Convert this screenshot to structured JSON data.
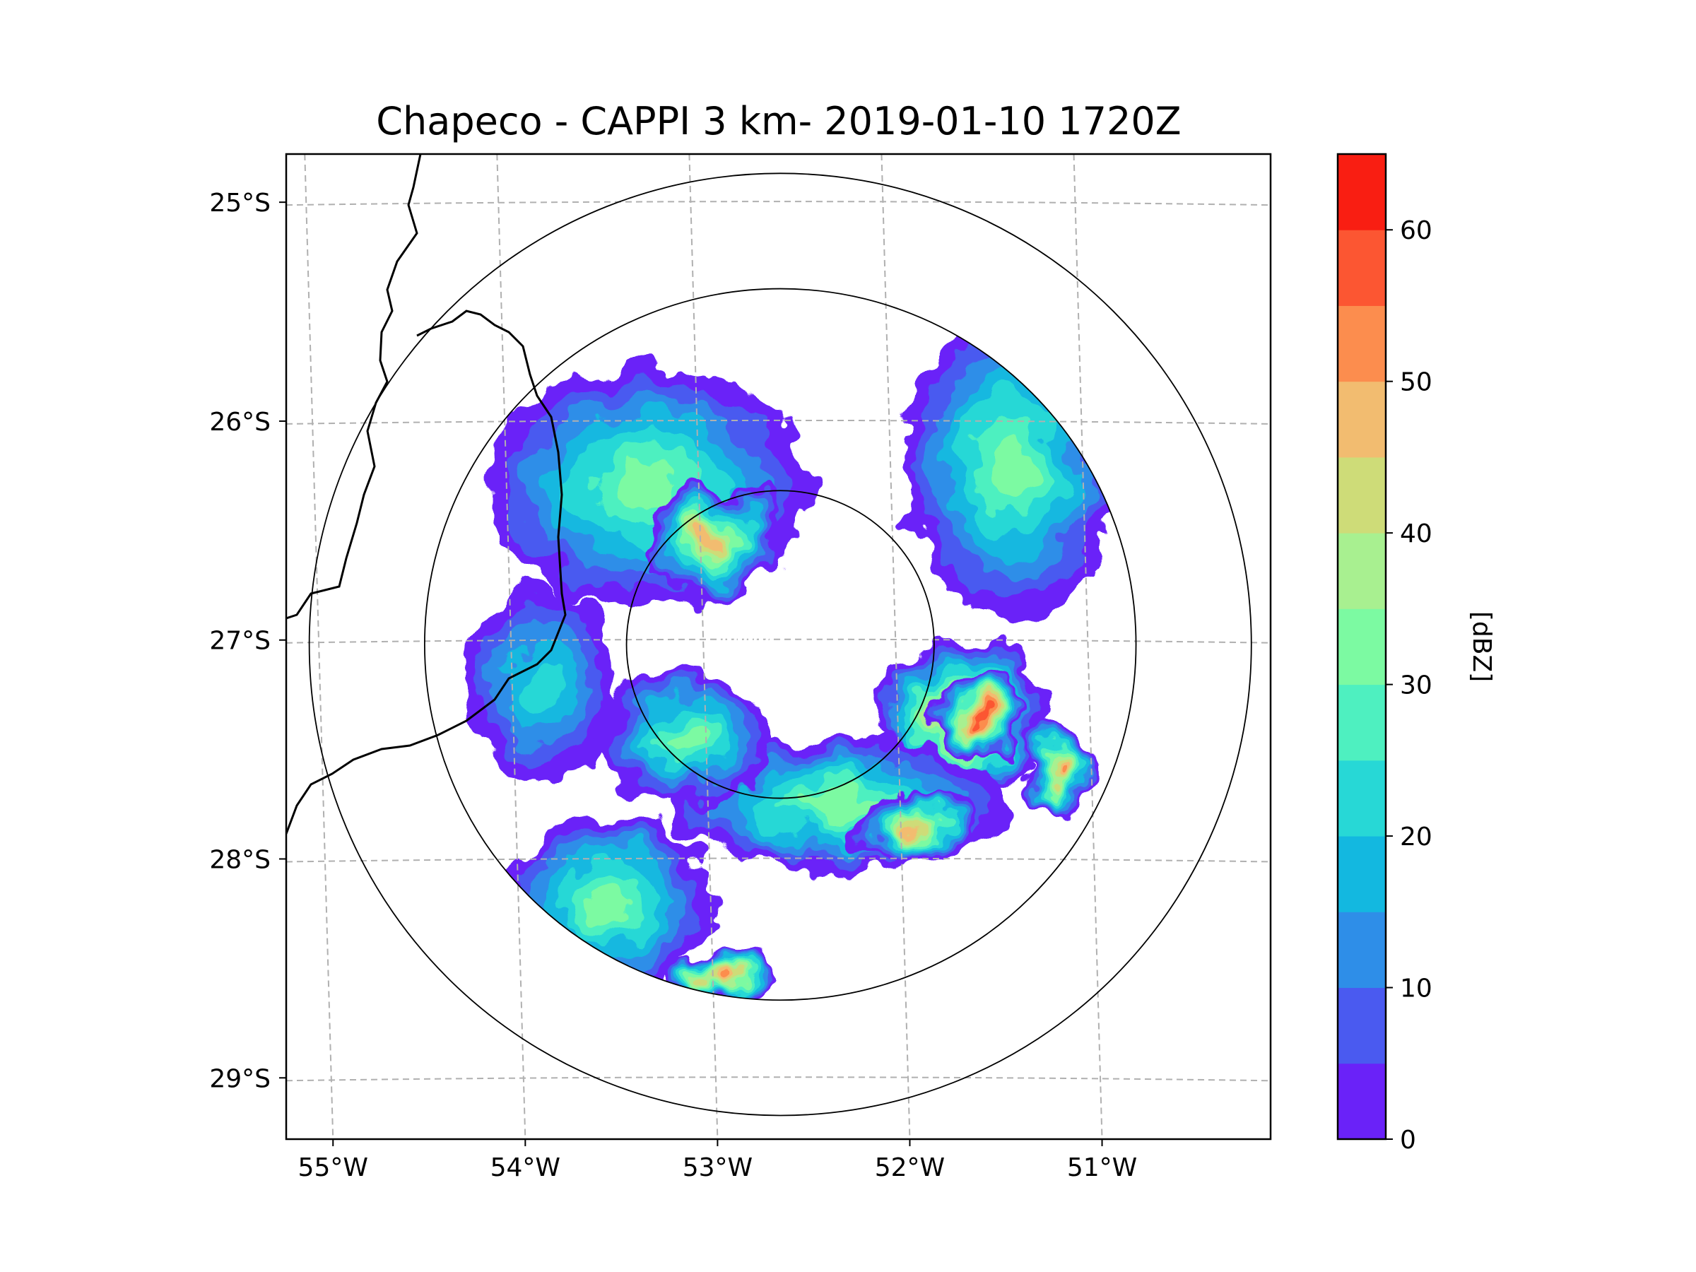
{
  "chart_data": {
    "type": "heatmap",
    "title": "Chapeco - CAPPI 3 km- 2019-01-10 1720Z",
    "lon_ticks": [
      {
        "value": -55,
        "label": "55°W"
      },
      {
        "value": -54,
        "label": "54°W"
      },
      {
        "value": -53,
        "label": "53°W"
      },
      {
        "value": -52,
        "label": "52°W"
      },
      {
        "value": -51,
        "label": "51°W"
      }
    ],
    "lat_ticks": [
      {
        "value": -25,
        "label": "25°S"
      },
      {
        "value": -26,
        "label": "26°S"
      },
      {
        "value": -27,
        "label": "27°S"
      },
      {
        "value": -28,
        "label": "28°S"
      },
      {
        "value": -29,
        "label": "29°S"
      }
    ],
    "xlim": [
      -55.17,
      -50.05
    ],
    "ylim": [
      -29.28,
      -24.78
    ],
    "radar_center": {
      "lon": -52.6,
      "lat": -27.02
    },
    "range_rings_deg": [
      0.8,
      1.85,
      2.45
    ],
    "colorbar": {
      "label": "[dBZ]",
      "min": 0,
      "max": 65,
      "step": 5,
      "tick_values": [
        0,
        10,
        20,
        30,
        40,
        50,
        60
      ],
      "tick_labels": [
        "0",
        "10",
        "20",
        "30",
        "40",
        "50",
        "60"
      ],
      "colors": [
        "#6a22f8",
        "#4a5af0",
        "#2e8ee8",
        "#13b8e0",
        "#27d8d6",
        "#4ef0c0",
        "#7cfaa2",
        "#a8f090",
        "#cedc78",
        "#f2bc70",
        "#fc8d4e",
        "#fc5632",
        "#f91e12"
      ]
    },
    "echo_regions": [
      {
        "name": "north-west-band",
        "lon": -53.3,
        "lat": -26.3,
        "rlon": 0.85,
        "rlat": 0.55,
        "dbz": 30
      },
      {
        "name": "north-west-core",
        "lon": -52.95,
        "lat": -26.55,
        "rlon": 0.35,
        "rlat": 0.25,
        "dbz": 45
      },
      {
        "name": "north-east-band",
        "lon": -51.4,
        "lat": -26.2,
        "rlon": 0.55,
        "rlat": 0.7,
        "dbz": 28
      },
      {
        "name": "east-cell",
        "lon": -51.65,
        "lat": -27.35,
        "rlon": 0.45,
        "rlat": 0.35,
        "dbz": 50
      },
      {
        "name": "east-cell-core",
        "lon": -51.55,
        "lat": -27.35,
        "rlon": 0.25,
        "rlat": 0.18,
        "dbz": 55
      },
      {
        "name": "far-east-cell",
        "lon": -51.15,
        "lat": -27.6,
        "rlon": 0.2,
        "rlat": 0.2,
        "dbz": 50
      },
      {
        "name": "south-band",
        "lon": -52.3,
        "lat": -27.75,
        "rlon": 0.9,
        "rlat": 0.3,
        "dbz": 32
      },
      {
        "name": "south-core",
        "lon": -51.9,
        "lat": -27.85,
        "rlon": 0.3,
        "rlat": 0.15,
        "dbz": 45
      },
      {
        "name": "south-west-band",
        "lon": -53.5,
        "lat": -28.2,
        "rlon": 0.55,
        "rlat": 0.4,
        "dbz": 32
      },
      {
        "name": "far-south-cell",
        "lon": -52.9,
        "lat": -28.55,
        "rlon": 0.3,
        "rlat": 0.12,
        "dbz": 48
      },
      {
        "name": "west-band",
        "lon": -53.85,
        "lat": -27.2,
        "rlon": 0.4,
        "rlat": 0.45,
        "dbz": 18
      },
      {
        "name": "center-band",
        "lon": -53.1,
        "lat": -27.45,
        "rlon": 0.45,
        "rlat": 0.3,
        "dbz": 28
      }
    ]
  }
}
